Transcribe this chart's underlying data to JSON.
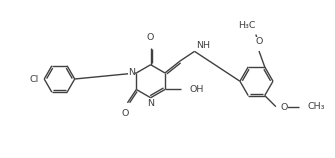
{
  "bg_color": "#ffffff",
  "line_color": "#404040",
  "line_width": 1.0,
  "font_size": 6.8,
  "fig_width": 3.35,
  "fig_height": 1.58,
  "dpi": 100,
  "xlim": [
    0,
    10.5
  ],
  "ylim": [
    0,
    4.7
  ]
}
